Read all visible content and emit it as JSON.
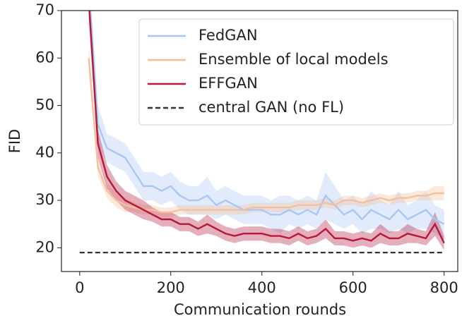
{
  "chart_data": {
    "type": "line",
    "xlabel": "Communication rounds",
    "ylabel": "FID",
    "xlim": [
      -40,
      830
    ],
    "ylim": [
      15,
      70
    ],
    "xticks": [
      0,
      200,
      400,
      600,
      800
    ],
    "yticks": [
      20,
      30,
      40,
      50,
      60,
      70
    ],
    "legend": "upper right",
    "x": [
      20,
      40,
      60,
      80,
      100,
      120,
      140,
      160,
      180,
      200,
      220,
      240,
      260,
      280,
      300,
      320,
      340,
      360,
      380,
      400,
      420,
      440,
      460,
      480,
      500,
      520,
      540,
      560,
      580,
      600,
      620,
      640,
      660,
      680,
      700,
      720,
      740,
      760,
      780,
      800
    ],
    "series": [
      {
        "name": "FedGAN",
        "color": "#a9c7f4",
        "values": [
          75,
          46,
          41,
          40,
          39,
          36,
          33,
          33,
          32,
          33,
          31,
          30,
          30,
          31,
          29,
          30,
          29,
          28,
          28,
          28,
          27,
          27,
          28,
          27,
          28,
          27,
          31,
          29,
          27,
          28,
          26,
          28,
          27,
          26,
          28,
          26,
          27,
          28,
          26,
          25
        ],
        "errors": [
          4,
          4,
          3,
          3,
          3,
          3,
          3,
          3,
          3,
          3,
          3,
          3,
          3,
          4,
          3,
          3,
          3,
          3,
          3,
          3,
          3,
          4,
          3,
          3,
          3,
          3,
          5,
          4,
          3,
          3,
          3,
          4,
          3,
          3,
          4,
          3,
          3,
          4,
          3,
          3
        ]
      },
      {
        "name": "Ensemble of local models",
        "color": "#f4bf9f",
        "values": [
          60,
          37,
          32,
          30,
          29,
          28.5,
          28,
          28,
          27.5,
          27.5,
          28,
          28,
          28,
          28,
          28,
          28,
          28,
          28,
          28.5,
          28.5,
          28.5,
          28.5,
          28.5,
          29,
          29,
          29,
          29.5,
          29,
          30,
          30,
          29.5,
          30,
          30.5,
          30,
          30.5,
          30.5,
          31,
          31,
          31.5,
          31.5
        ],
        "errors": [
          3,
          2,
          1.5,
          1.5,
          1.5,
          1,
          1,
          1,
          1,
          1,
          1,
          1,
          1,
          1,
          1,
          1,
          1,
          1,
          1,
          1,
          1,
          1,
          1,
          1,
          1,
          1,
          1,
          1,
          1,
          1,
          1,
          1,
          1,
          1,
          1,
          1,
          1,
          1,
          1.5,
          1.5
        ]
      },
      {
        "name": "EFFGAN",
        "color": "#b5173d",
        "values": [
          72,
          42,
          35,
          32,
          30,
          29,
          28,
          27,
          26,
          26,
          25,
          25,
          24,
          25,
          24,
          23,
          22.5,
          23,
          23,
          23,
          22.5,
          22.5,
          22,
          23,
          22,
          22.5,
          24,
          22,
          22,
          21.5,
          22,
          21.5,
          23,
          22,
          22,
          23,
          22.5,
          22,
          25,
          21
        ],
        "errors": [
          4,
          3,
          2.5,
          2,
          2,
          2,
          2,
          1.5,
          1.5,
          1.5,
          1.5,
          1.5,
          1.5,
          2,
          1.5,
          1.5,
          1.5,
          1.5,
          1.5,
          1.5,
          1.5,
          1.5,
          1.5,
          1.5,
          1.5,
          1.5,
          2,
          1.5,
          1.5,
          1.5,
          1.5,
          1.5,
          2,
          1.5,
          1.5,
          2,
          1.5,
          1.5,
          2.5,
          1.5
        ]
      },
      {
        "name": "central GAN (no FL)",
        "color": "#333333",
        "dashed": true,
        "x": [
          0,
          800
        ],
        "values": [
          19,
          19
        ]
      }
    ]
  }
}
